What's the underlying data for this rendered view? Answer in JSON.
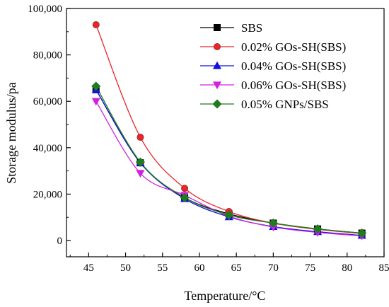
{
  "chart_data": {
    "type": "line",
    "title": "",
    "xlabel": "Temperature/°C",
    "ylabel": "Storage modulus/pa",
    "xlim": [
      42,
      85
    ],
    "ylim": [
      -7000,
      100000
    ],
    "x_ticks": [
      45,
      50,
      55,
      60,
      65,
      70,
      75,
      80,
      85
    ],
    "y_ticks": [
      0,
      20000,
      40000,
      60000,
      80000,
      100000
    ],
    "x_tick_labels": [
      "45",
      "50",
      "55",
      "60",
      "65",
      "70",
      "75",
      "80",
      "85"
    ],
    "y_tick_labels": [
      "0",
      "20,000",
      "40,000",
      "60,000",
      "80,000",
      "100,000"
    ],
    "grid": false,
    "legend_position": "top-right",
    "x": [
      46,
      52,
      58,
      64,
      70,
      76,
      82
    ],
    "series": [
      {
        "name": "SBS",
        "color": "#000000",
        "marker": "square",
        "values": [
          65000,
          33500,
          18500,
          11500,
          7500,
          5000,
          3200
        ]
      },
      {
        "name": "0.02% GOs-SH(SBS)",
        "color": "#e8262b",
        "edge": "#a52a2a",
        "marker": "circle",
        "values": [
          93000,
          44500,
          22500,
          12500,
          7500,
          4800,
          3000
        ]
      },
      {
        "name": "0.04% GOs-SH(SBS)",
        "color": "#1010e0",
        "marker": "triangle-up",
        "values": [
          65000,
          33500,
          18000,
          10200,
          6000,
          3800,
          2200
        ]
      },
      {
        "name": "0.06% GOs-SH(SBS)",
        "color": "#d020e0",
        "marker": "triangle-down",
        "values": [
          60000,
          29000,
          19500,
          10500,
          5800,
          3500,
          2000
        ]
      },
      {
        "name": "0.05% GNPs/SBS",
        "color": "#1e7b1e",
        "marker": "diamond",
        "values": [
          66500,
          33800,
          18500,
          11000,
          7500,
          5000,
          3200
        ]
      }
    ]
  }
}
